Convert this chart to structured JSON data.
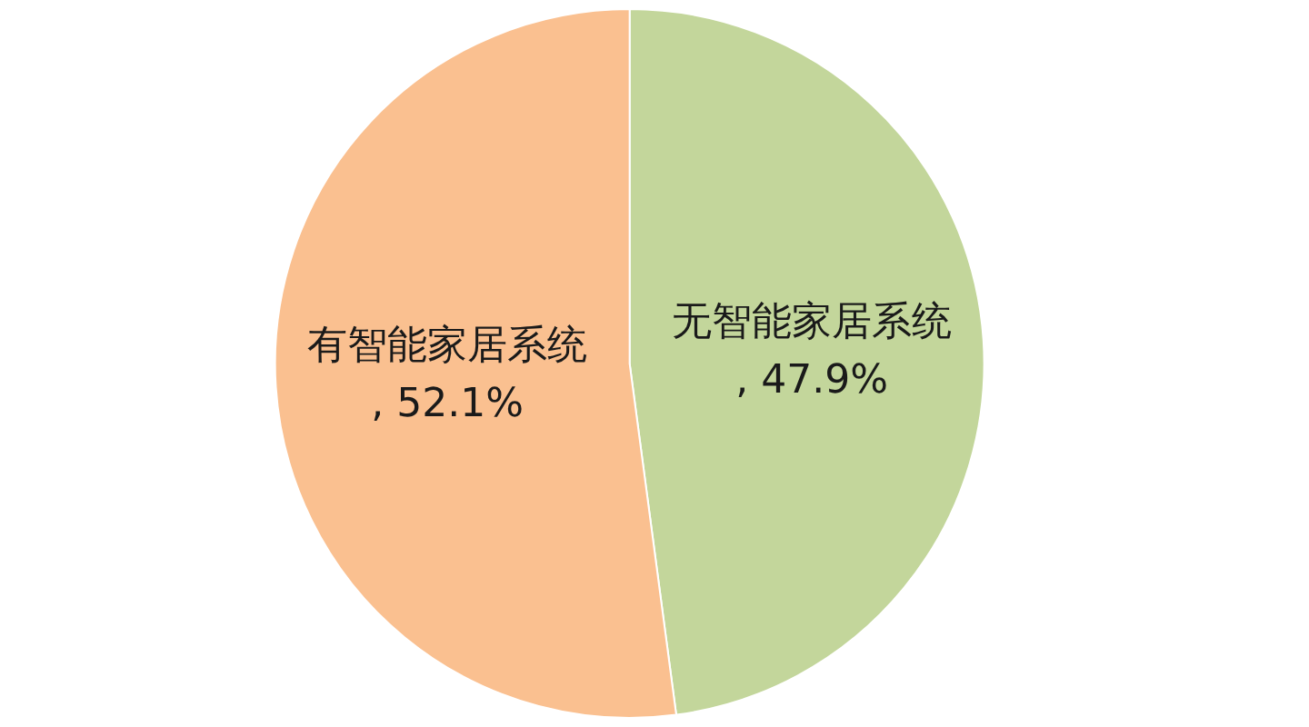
{
  "chart_data": {
    "type": "pie",
    "categories": [
      "无智能家居系统",
      "有智能家居系统"
    ],
    "values": [
      47.9,
      52.1
    ],
    "colors": [
      "#c3d69b",
      "#fac090"
    ],
    "value_labels": [
      ", 47.9%",
      ", 52.1%"
    ],
    "legend": false
  }
}
